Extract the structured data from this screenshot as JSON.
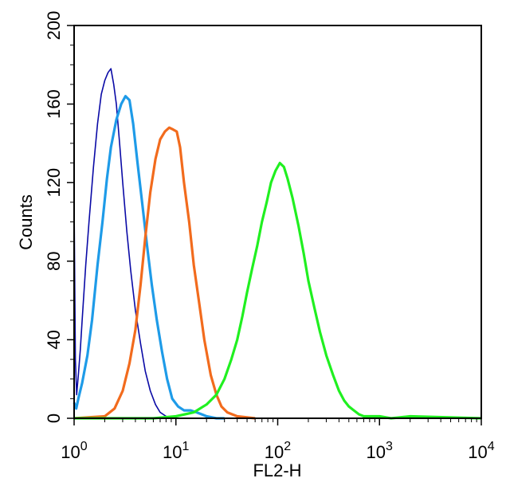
{
  "chart_data": {
    "type": "line",
    "title": "",
    "xlabel": "FL2-H",
    "ylabel": "Counts",
    "x_scale": "log",
    "xlim": [
      1,
      10000
    ],
    "ylim": [
      0,
      200
    ],
    "x_ticks": [
      {
        "value": 1,
        "base": "10",
        "exp": "0"
      },
      {
        "value": 10,
        "base": "10",
        "exp": "1"
      },
      {
        "value": 100,
        "base": "10",
        "exp": "2"
      },
      {
        "value": 1000,
        "base": "10",
        "exp": "3"
      },
      {
        "value": 10000,
        "base": "10",
        "exp": "4"
      }
    ],
    "y_ticks": [
      "0",
      "40",
      "80",
      "120",
      "160",
      "200"
    ],
    "grid": false,
    "legend": "none",
    "series": [
      {
        "color": "#0a0aa6",
        "stroke_width": 1.6,
        "x": [
          1.0,
          1.03,
          1.06,
          1.1,
          1.15,
          1.2,
          1.3,
          1.4,
          1.55,
          1.7,
          1.85,
          2.0,
          2.15,
          2.3,
          2.45,
          2.6,
          2.8,
          3.0,
          3.3,
          3.6,
          4.0,
          4.5,
          5.0,
          5.6,
          6.3,
          7.0,
          8.0,
          9.0,
          10.0,
          12.0,
          15.0
        ],
        "y": [
          110,
          30,
          12,
          22,
          35,
          50,
          78,
          100,
          128,
          150,
          165,
          172,
          176,
          178,
          170,
          160,
          140,
          120,
          95,
          75,
          55,
          38,
          24,
          14,
          7,
          3,
          1,
          0,
          0,
          0,
          0
        ]
      },
      {
        "color": "#1e9be8",
        "stroke_width": 3.2,
        "x": [
          1.0,
          1.05,
          1.1,
          1.2,
          1.35,
          1.5,
          1.7,
          1.9,
          2.1,
          2.3,
          2.6,
          2.9,
          3.2,
          3.5,
          3.8,
          4.2,
          4.7,
          5.2,
          5.8,
          6.5,
          7.3,
          8.2,
          9.2,
          10.5,
          12.0,
          14.0,
          16.0,
          18.0,
          20.0,
          25.0,
          30.0
        ],
        "y": [
          8,
          5,
          10,
          18,
          32,
          50,
          78,
          100,
          122,
          138,
          152,
          160,
          164,
          162,
          150,
          130,
          108,
          88,
          68,
          50,
          34,
          20,
          10,
          6,
          4,
          4,
          3,
          2,
          1,
          0,
          0
        ]
      },
      {
        "color": "#f26b1d",
        "stroke_width": 3.2,
        "x": [
          1.0,
          2.0,
          2.5,
          3.0,
          3.5,
          4.0,
          4.5,
          5.0,
          5.6,
          6.3,
          7.0,
          7.8,
          8.6,
          9.4,
          10.2,
          11.0,
          12.0,
          13.5,
          15.0,
          17.0,
          19.0,
          22.0,
          25.0,
          28.0,
          32.0,
          40.0,
          60.0
        ],
        "y": [
          0,
          1,
          5,
          14,
          28,
          45,
          68,
          92,
          115,
          132,
          142,
          146,
          148,
          147,
          146,
          138,
          120,
          100,
          78,
          58,
          40,
          22,
          12,
          6,
          3,
          1,
          0
        ]
      },
      {
        "color": "#20f020",
        "stroke_width": 3.2,
        "x": [
          1.0,
          6.0,
          10.0,
          15.0,
          20.0,
          25.0,
          30.0,
          35.0,
          40.0,
          45.0,
          50.0,
          56.0,
          63.0,
          70.0,
          78.0,
          86.0,
          95.0,
          105.0,
          115.0,
          125.0,
          140.0,
          160.0,
          180.0,
          200.0,
          230.0,
          260.0,
          300.0,
          350.0,
          400.0,
          450.0,
          500.0,
          560.0,
          630.0,
          700.0,
          800.0,
          1000.0,
          1300.0,
          2000.0,
          10000.0
        ],
        "y": [
          0,
          0,
          1,
          3,
          7,
          12,
          20,
          30,
          40,
          52,
          64,
          76,
          88,
          100,
          110,
          120,
          126,
          130,
          128,
          122,
          112,
          98,
          84,
          70,
          56,
          44,
          32,
          22,
          14,
          9,
          6,
          4,
          2,
          1,
          1,
          1,
          0,
          1,
          0
        ]
      }
    ]
  }
}
